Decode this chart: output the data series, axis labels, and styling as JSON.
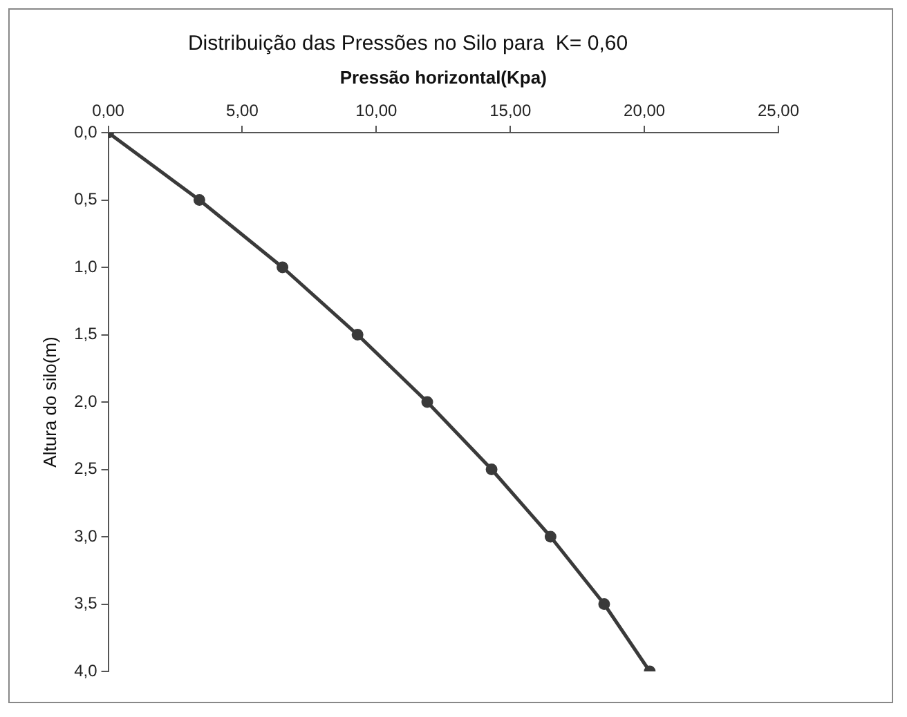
{
  "chart_data": {
    "type": "line",
    "title": "Distribuição das Pressões no Silo para  K= 0,60",
    "xlabel": "Pressão horizontal(Kpa)",
    "ylabel": "Altura do silo(m)",
    "x": [
      0,
      3.4,
      6.5,
      9.3,
      11.9,
      14.3,
      16.5,
      18.5,
      20.2
    ],
    "series": [
      {
        "color": "#3a3a3a",
        "values": [
          0,
          0.5,
          1.0,
          1.5,
          2.0,
          2.5,
          3.0,
          3.5,
          4.0
        ]
      }
    ],
    "xlim": [
      0,
      25
    ],
    "xticks": [
      {
        "value": 0,
        "label": "0,00"
      },
      {
        "value": 5,
        "label": "5,00"
      },
      {
        "value": 10,
        "label": "10,00"
      },
      {
        "value": 15,
        "label": "15,00"
      },
      {
        "value": 20,
        "label": "20,00"
      },
      {
        "value": 25,
        "label": "25,00"
      }
    ],
    "ylim": [
      4,
      0
    ],
    "yticks": [
      {
        "value": 0,
        "label": "0,0"
      },
      {
        "value": 0.5,
        "label": "0,5"
      },
      {
        "value": 1,
        "label": "1,0"
      },
      {
        "value": 1.5,
        "label": "1,5"
      },
      {
        "value": 2,
        "label": "2,0"
      },
      {
        "value": 2.5,
        "label": "2,5"
      },
      {
        "value": 3,
        "label": "3,0"
      },
      {
        "value": 3.5,
        "label": "3,5"
      },
      {
        "value": 4,
        "label": "4,0"
      }
    ],
    "grid": false,
    "legend": false,
    "marker": "circle",
    "line_style": "solid"
  }
}
